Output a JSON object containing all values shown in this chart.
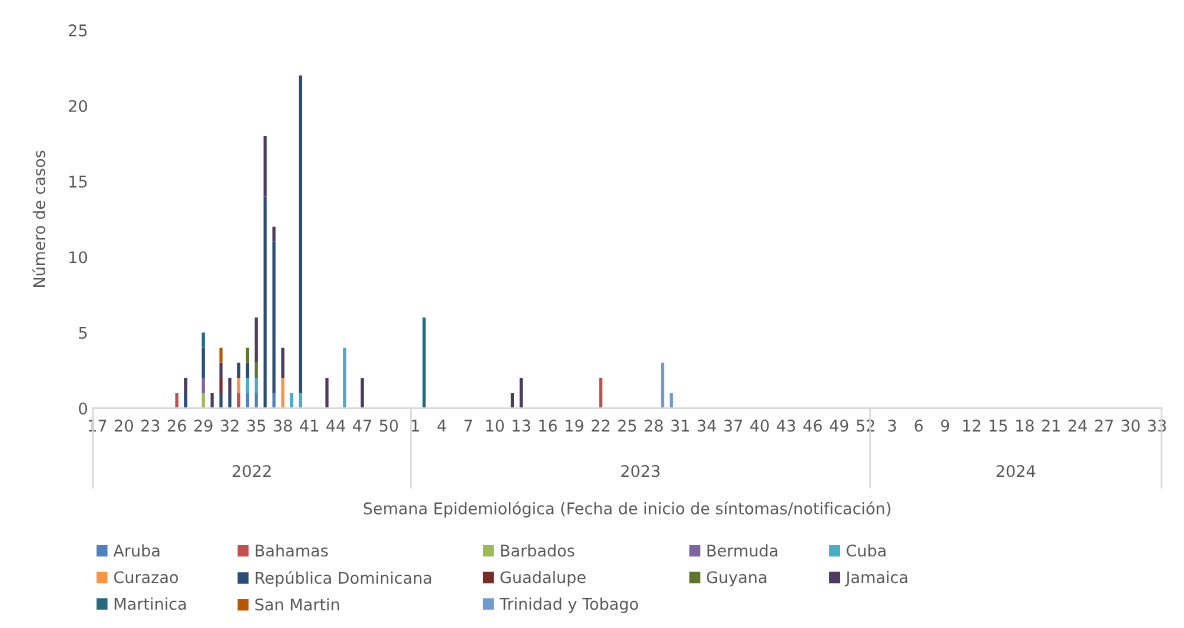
{
  "chart_data": {
    "type": "bar",
    "stacked": true,
    "xlabel": "Semana Epidemiológica (Fecha de inicio de síntomas/notificación)",
    "ylabel": "Número de casos",
    "ylim": [
      0,
      25
    ],
    "yticks": [
      0,
      5,
      10,
      15,
      20,
      25
    ],
    "grid": false,
    "legend": "bottom",
    "annotations": [
      "2022",
      "2023",
      "2024"
    ],
    "categories": [
      "17",
      null,
      null,
      "20",
      null,
      null,
      "23",
      null,
      null,
      "26",
      null,
      null,
      "29",
      null,
      null,
      "32",
      null,
      null,
      "35",
      null,
      null,
      "38",
      null,
      null,
      "41",
      null,
      null,
      "44",
      null,
      null,
      "47",
      null,
      null,
      "50",
      null,
      null,
      "1",
      null,
      null,
      "4",
      null,
      null,
      "7",
      null,
      null,
      "10",
      null,
      null,
      "13",
      null,
      null,
      "16",
      null,
      null,
      "19",
      null,
      null,
      "22",
      null,
      null,
      "25",
      null,
      null,
      "28",
      null,
      null,
      "31",
      null,
      null,
      "34",
      null,
      null,
      "37",
      null,
      null,
      "40",
      null,
      null,
      "43",
      null,
      null,
      "46",
      null,
      null,
      "49",
      null,
      null,
      "52",
      null,
      null,
      "3",
      null,
      null,
      "6",
      null,
      null,
      "9",
      null,
      null,
      "12",
      null,
      null,
      "15",
      null,
      null,
      "18",
      null,
      null,
      "21",
      null,
      null,
      "24",
      null,
      null,
      "27",
      null,
      null,
      "30",
      null,
      null,
      "33"
    ],
    "series": [
      {
        "name": "Aruba",
        "color": "#4f81bd",
        "values": [
          0,
          0,
          0,
          0,
          0,
          0,
          0,
          0,
          0,
          0,
          0,
          0,
          0,
          0,
          0,
          0,
          0,
          1,
          1,
          0,
          1,
          0,
          0,
          0,
          0,
          0,
          0,
          0,
          0,
          0,
          0,
          0,
          0,
          0,
          0,
          0,
          0,
          0,
          0,
          0,
          0,
          0,
          0,
          0,
          0,
          0,
          0,
          0,
          0,
          0,
          0,
          0,
          0,
          0,
          0,
          0,
          0,
          0,
          0,
          0,
          0,
          0,
          0,
          0,
          0,
          0,
          0,
          0,
          0,
          0,
          0,
          0,
          0,
          0,
          0,
          0,
          0,
          0,
          0,
          0,
          0,
          0,
          0,
          0,
          0,
          0,
          0,
          0,
          0,
          0,
          0,
          0,
          0,
          0,
          0,
          0,
          0,
          0,
          0,
          0,
          0,
          0,
          0,
          0,
          0,
          0,
          0,
          0,
          0,
          0,
          0,
          0,
          0,
          0,
          0,
          0,
          0,
          0,
          0,
          0,
          0
        ]
      },
      {
        "name": "Bahamas",
        "color": "#c0504d",
        "values": [
          0,
          0,
          0,
          0,
          0,
          0,
          0,
          0,
          0,
          1,
          0,
          0,
          0,
          0,
          0,
          0,
          1,
          0,
          0,
          0,
          0,
          0,
          0,
          0,
          0,
          0,
          0,
          0,
          0,
          0,
          0,
          0,
          0,
          0,
          0,
          0,
          0,
          0,
          0,
          0,
          0,
          0,
          0,
          0,
          0,
          0,
          0,
          0,
          0,
          0,
          0,
          0,
          0,
          0,
          0,
          0,
          0,
          2,
          0,
          0,
          0,
          0,
          0,
          0,
          0,
          0,
          0,
          0,
          0,
          0,
          0,
          0,
          0,
          0,
          0,
          0,
          0,
          0,
          0,
          0,
          0,
          0,
          0,
          0,
          0,
          0,
          0,
          0,
          0,
          0,
          0,
          0,
          0,
          0,
          0,
          0,
          0,
          0,
          0,
          0,
          0,
          0,
          0,
          0,
          0,
          0,
          0,
          0,
          0,
          0,
          0,
          0,
          0,
          0,
          0,
          0,
          0,
          0,
          0,
          0,
          0
        ]
      },
      {
        "name": "Barbados",
        "color": "#9bbb59",
        "values": [
          0,
          0,
          0,
          0,
          0,
          0,
          0,
          0,
          0,
          0,
          0,
          0,
          1,
          0,
          0,
          0,
          0,
          0,
          0,
          0,
          0,
          0,
          0,
          0,
          0,
          0,
          0,
          0,
          0,
          0,
          0,
          0,
          0,
          0,
          0,
          0,
          0,
          0,
          0,
          0,
          0,
          0,
          0,
          0,
          0,
          0,
          0,
          0,
          0,
          0,
          0,
          0,
          0,
          0,
          0,
          0,
          0,
          0,
          0,
          0,
          0,
          0,
          0,
          0,
          0,
          0,
          0,
          0,
          0,
          0,
          0,
          0,
          0,
          0,
          0,
          0,
          0,
          0,
          0,
          0,
          0,
          0,
          0,
          0,
          0,
          0,
          0,
          0,
          0,
          0,
          0,
          0,
          0,
          0,
          0,
          0,
          0,
          0,
          0,
          0,
          0,
          0,
          0,
          0,
          0,
          0,
          0,
          0,
          0,
          0,
          0,
          0,
          0,
          0,
          0,
          0,
          0,
          0,
          0,
          0,
          0
        ]
      },
      {
        "name": "Bermuda",
        "color": "#8064a2",
        "values": [
          0,
          0,
          0,
          0,
          0,
          0,
          0,
          0,
          0,
          0,
          0,
          0,
          1,
          0,
          0,
          0,
          0,
          0,
          0,
          0,
          0,
          0,
          0,
          0,
          0,
          0,
          0,
          0,
          0,
          0,
          0,
          0,
          0,
          0,
          0,
          0,
          0,
          0,
          0,
          0,
          0,
          0,
          0,
          0,
          0,
          0,
          0,
          0,
          0,
          0,
          0,
          0,
          0,
          0,
          0,
          0,
          0,
          0,
          0,
          0,
          0,
          0,
          0,
          0,
          0,
          0,
          0,
          0,
          0,
          0,
          0,
          0,
          0,
          0,
          0,
          0,
          0,
          0,
          0,
          0,
          0,
          0,
          0,
          0,
          0,
          0,
          0,
          0,
          0,
          0,
          0,
          0,
          0,
          0,
          0,
          0,
          0,
          0,
          0,
          0,
          0,
          0,
          0,
          0,
          0,
          0,
          0,
          0,
          0,
          0,
          0,
          0,
          0,
          0,
          0,
          0,
          0,
          0,
          0,
          0,
          0
        ]
      },
      {
        "name": "Cuba",
        "color": "#4bacc6",
        "values": [
          0,
          0,
          0,
          0,
          0,
          0,
          0,
          0,
          0,
          0,
          0,
          0,
          0,
          0,
          0,
          0,
          0,
          1,
          1,
          0,
          0,
          0,
          1,
          1,
          0,
          0,
          0,
          0,
          4,
          0,
          0,
          0,
          0,
          0,
          0,
          0,
          0,
          0,
          0,
          0,
          0,
          0,
          0,
          0,
          0,
          0,
          0,
          0,
          0,
          0,
          0,
          0,
          0,
          0,
          0,
          0,
          0,
          0,
          0,
          0,
          0,
          0,
          0,
          0,
          0,
          0,
          0,
          0,
          0,
          0,
          0,
          0,
          0,
          0,
          0,
          0,
          0,
          0,
          0,
          0,
          0,
          0,
          0,
          0,
          0,
          0,
          0,
          0,
          0,
          0,
          0,
          0,
          0,
          0,
          0,
          0,
          0,
          0,
          0,
          0,
          0,
          0,
          0,
          0,
          0,
          0,
          0,
          0,
          0,
          0,
          0,
          0,
          0,
          0,
          0,
          0,
          0,
          0,
          0,
          0,
          0
        ]
      },
      {
        "name": "Curazao",
        "color": "#f79646",
        "values": [
          0,
          0,
          0,
          0,
          0,
          0,
          0,
          0,
          0,
          0,
          0,
          0,
          0,
          0,
          0,
          0,
          1,
          0,
          0,
          0,
          0,
          2,
          0,
          0,
          0,
          0,
          0,
          0,
          0,
          0,
          0,
          0,
          0,
          0,
          0,
          0,
          0,
          0,
          0,
          0,
          0,
          0,
          0,
          0,
          0,
          0,
          0,
          0,
          0,
          0,
          0,
          0,
          0,
          0,
          0,
          0,
          0,
          0,
          0,
          0,
          0,
          0,
          0,
          0,
          0,
          0,
          0,
          0,
          0,
          0,
          0,
          0,
          0,
          0,
          0,
          0,
          0,
          0,
          0,
          0,
          0,
          0,
          0,
          0,
          0,
          0,
          0,
          0,
          0,
          0,
          0,
          0,
          0,
          0,
          0,
          0,
          0,
          0,
          0,
          0,
          0,
          0,
          0,
          0,
          0,
          0,
          0,
          0,
          0,
          0,
          0,
          0,
          0,
          0,
          0,
          0,
          0,
          0,
          0,
          0,
          0
        ]
      },
      {
        "name": "República Dominicana",
        "color": "#2c4d75",
        "values": [
          0,
          0,
          0,
          0,
          0,
          0,
          0,
          0,
          0,
          0,
          1,
          0,
          2,
          0,
          1,
          1,
          1,
          1,
          0,
          14,
          10,
          0,
          0,
          21,
          0,
          0,
          0,
          0,
          0,
          0,
          0,
          0,
          0,
          0,
          0,
          0,
          0,
          0,
          0,
          0,
          0,
          0,
          0,
          0,
          0,
          0,
          0,
          0,
          0,
          0,
          0,
          0,
          0,
          0,
          0,
          0,
          0,
          0,
          0,
          0,
          0,
          0,
          0,
          0,
          0,
          0,
          0,
          0,
          0,
          0,
          0,
          0,
          0,
          0,
          0,
          0,
          0,
          0,
          0,
          0,
          0,
          0,
          0,
          0,
          0,
          0,
          0,
          0,
          0,
          0,
          0,
          0,
          0,
          0,
          0,
          0,
          0,
          0,
          0,
          0,
          0,
          0,
          0,
          0,
          0,
          0,
          0,
          0,
          0,
          0,
          0,
          0,
          0,
          0,
          0,
          0,
          0,
          0,
          0,
          0,
          0
        ]
      },
      {
        "name": "Guadalupe",
        "color": "#772c2a",
        "values": [
          0,
          0,
          0,
          0,
          0,
          0,
          0,
          0,
          0,
          0,
          0,
          0,
          0,
          0,
          1,
          0,
          0,
          0,
          0,
          0,
          0,
          0,
          0,
          0,
          0,
          0,
          0,
          0,
          0,
          0,
          0,
          0,
          0,
          0,
          0,
          0,
          0,
          0,
          0,
          0,
          0,
          0,
          0,
          0,
          0,
          0,
          0,
          0,
          0,
          0,
          0,
          0,
          0,
          0,
          0,
          0,
          0,
          0,
          0,
          0,
          0,
          0,
          0,
          0,
          0,
          0,
          0,
          0,
          0,
          0,
          0,
          0,
          0,
          0,
          0,
          0,
          0,
          0,
          0,
          0,
          0,
          0,
          0,
          0,
          0,
          0,
          0,
          0,
          0,
          0,
          0,
          0,
          0,
          0,
          0,
          0,
          0,
          0,
          0,
          0,
          0,
          0,
          0,
          0,
          0,
          0,
          0,
          0,
          0,
          0,
          0,
          0,
          0,
          0,
          0,
          0,
          0,
          0,
          0,
          0,
          0
        ]
      },
      {
        "name": "Guyana",
        "color": "#5f7530",
        "values": [
          0,
          0,
          0,
          0,
          0,
          0,
          0,
          0,
          0,
          0,
          0,
          0,
          0,
          0,
          0,
          0,
          0,
          1,
          1,
          0,
          0,
          0,
          0,
          0,
          0,
          0,
          0,
          0,
          0,
          0,
          0,
          0,
          0,
          0,
          0,
          0,
          0,
          0,
          0,
          0,
          0,
          0,
          0,
          0,
          0,
          0,
          0,
          0,
          0,
          0,
          0,
          0,
          0,
          0,
          0,
          0,
          0,
          0,
          0,
          0,
          0,
          0,
          0,
          0,
          0,
          0,
          0,
          0,
          0,
          0,
          0,
          0,
          0,
          0,
          0,
          0,
          0,
          0,
          0,
          0,
          0,
          0,
          0,
          0,
          0,
          0,
          0,
          0,
          0,
          0,
          0,
          0,
          0,
          0,
          0,
          0,
          0,
          0,
          0,
          0,
          0,
          0,
          0,
          0,
          0,
          0,
          0,
          0,
          0,
          0,
          0,
          0,
          0,
          0,
          0,
          0,
          0,
          0,
          0,
          0,
          0
        ]
      },
      {
        "name": "Jamaica",
        "color": "#4d3b62",
        "values": [
          0,
          0,
          0,
          0,
          0,
          0,
          0,
          0,
          0,
          0,
          1,
          0,
          0,
          1,
          1,
          1,
          0,
          0,
          3,
          4,
          1,
          2,
          0,
          0,
          0,
          0,
          2,
          0,
          0,
          0,
          2,
          0,
          0,
          0,
          0,
          0,
          0,
          0,
          0,
          0,
          0,
          0,
          0,
          0,
          0,
          0,
          0,
          1,
          2,
          0,
          0,
          0,
          0,
          0,
          0,
          0,
          0,
          0,
          0,
          0,
          0,
          0,
          0,
          0,
          0,
          0,
          0,
          0,
          0,
          0,
          0,
          0,
          0,
          0,
          0,
          0,
          0,
          0,
          0,
          0,
          0,
          0,
          0,
          0,
          0,
          0,
          0,
          0,
          0,
          0,
          0,
          0,
          0,
          0,
          0,
          0,
          0,
          0,
          0,
          0,
          0,
          0,
          0,
          0,
          0,
          0,
          0,
          0,
          0,
          0,
          0,
          0,
          0,
          0,
          0,
          0,
          0,
          0,
          0,
          0,
          0
        ]
      },
      {
        "name": "Martinica",
        "color": "#276a7c",
        "values": [
          0,
          0,
          0,
          0,
          0,
          0,
          0,
          0,
          0,
          0,
          0,
          0,
          1,
          0,
          0,
          0,
          0,
          0,
          0,
          0,
          0,
          0,
          0,
          0,
          0,
          0,
          0,
          0,
          0,
          0,
          0,
          0,
          0,
          0,
          0,
          0,
          0,
          6,
          0,
          0,
          0,
          0,
          0,
          0,
          0,
          0,
          0,
          0,
          0,
          0,
          0,
          0,
          0,
          0,
          0,
          0,
          0,
          0,
          0,
          0,
          0,
          0,
          0,
          0,
          0,
          0,
          0,
          0,
          0,
          0,
          0,
          0,
          0,
          0,
          0,
          0,
          0,
          0,
          0,
          0,
          0,
          0,
          0,
          0,
          0,
          0,
          0,
          0,
          0,
          0,
          0,
          0,
          0,
          0,
          0,
          0,
          0,
          0,
          0,
          0,
          0,
          0,
          0,
          0,
          0,
          0,
          0,
          0,
          0,
          0,
          0,
          0,
          0,
          0,
          0,
          0,
          0,
          0,
          0,
          0,
          0
        ]
      },
      {
        "name": "San Martin",
        "color": "#b65708",
        "values": [
          0,
          0,
          0,
          0,
          0,
          0,
          0,
          0,
          0,
          0,
          0,
          0,
          0,
          0,
          1,
          0,
          0,
          0,
          0,
          0,
          0,
          0,
          0,
          0,
          0,
          0,
          0,
          0,
          0,
          0,
          0,
          0,
          0,
          0,
          0,
          0,
          0,
          0,
          0,
          0,
          0,
          0,
          0,
          0,
          0,
          0,
          0,
          0,
          0,
          0,
          0,
          0,
          0,
          0,
          0,
          0,
          0,
          0,
          0,
          0,
          0,
          0,
          0,
          0,
          0,
          0,
          0,
          0,
          0,
          0,
          0,
          0,
          0,
          0,
          0,
          0,
          0,
          0,
          0,
          0,
          0,
          0,
          0,
          0,
          0,
          0,
          0,
          0,
          0,
          0,
          0,
          0,
          0,
          0,
          0,
          0,
          0,
          0,
          0,
          0,
          0,
          0,
          0,
          0,
          0,
          0,
          0,
          0,
          0,
          0,
          0,
          0,
          0,
          0,
          0,
          0,
          0,
          0,
          0,
          0,
          0
        ]
      },
      {
        "name": "Trinidad y Tobago",
        "color": "#729aca",
        "values": [
          0,
          0,
          0,
          0,
          0,
          0,
          0,
          0,
          0,
          0,
          0,
          0,
          0,
          0,
          0,
          0,
          0,
          0,
          0,
          0,
          0,
          0,
          0,
          0,
          0,
          0,
          0,
          0,
          0,
          0,
          0,
          0,
          0,
          0,
          0,
          0,
          0,
          0,
          0,
          0,
          0,
          0,
          0,
          0,
          0,
          0,
          0,
          0,
          0,
          0,
          0,
          0,
          0,
          0,
          0,
          0,
          0,
          0,
          0,
          0,
          0,
          0,
          0,
          0,
          3,
          1,
          0,
          0,
          0,
          0,
          0,
          0,
          0,
          0,
          0,
          0,
          0,
          0,
          0,
          0,
          0,
          0,
          0,
          0,
          0,
          0,
          0,
          0,
          0,
          0,
          0,
          0,
          0,
          0,
          0,
          0,
          0,
          0,
          0,
          0,
          0,
          0,
          0,
          0,
          0,
          0,
          0,
          0,
          0,
          0,
          0,
          0,
          0,
          0,
          0,
          0,
          0,
          0,
          0,
          0,
          0
        ]
      }
    ]
  }
}
